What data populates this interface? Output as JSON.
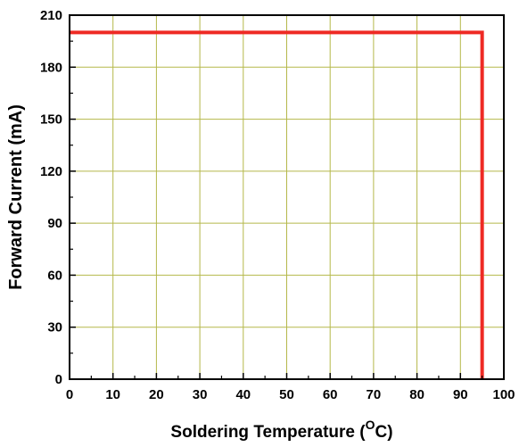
{
  "chart_data": {
    "type": "line",
    "title": "",
    "xlabel": "Soldering Temperature (",
    "xlabel_unit_super": "O",
    "xlabel_unit_suffix": "C)",
    "ylabel": "Forward Current (mA)",
    "xlim": [
      0,
      100
    ],
    "ylim": [
      0,
      210
    ],
    "xticks": [
      0,
      10,
      20,
      30,
      40,
      50,
      60,
      70,
      80,
      90,
      100
    ],
    "yticks": [
      0,
      30,
      60,
      90,
      120,
      150,
      180,
      210
    ],
    "grid": true,
    "series": [
      {
        "color": "#ee2a24",
        "x": [
          0,
          95,
          95
        ],
        "y": [
          200,
          200,
          0
        ]
      }
    ]
  },
  "colors": {
    "grid": "#b5b84a",
    "axis": "#000000",
    "series": "#ee2a24"
  }
}
